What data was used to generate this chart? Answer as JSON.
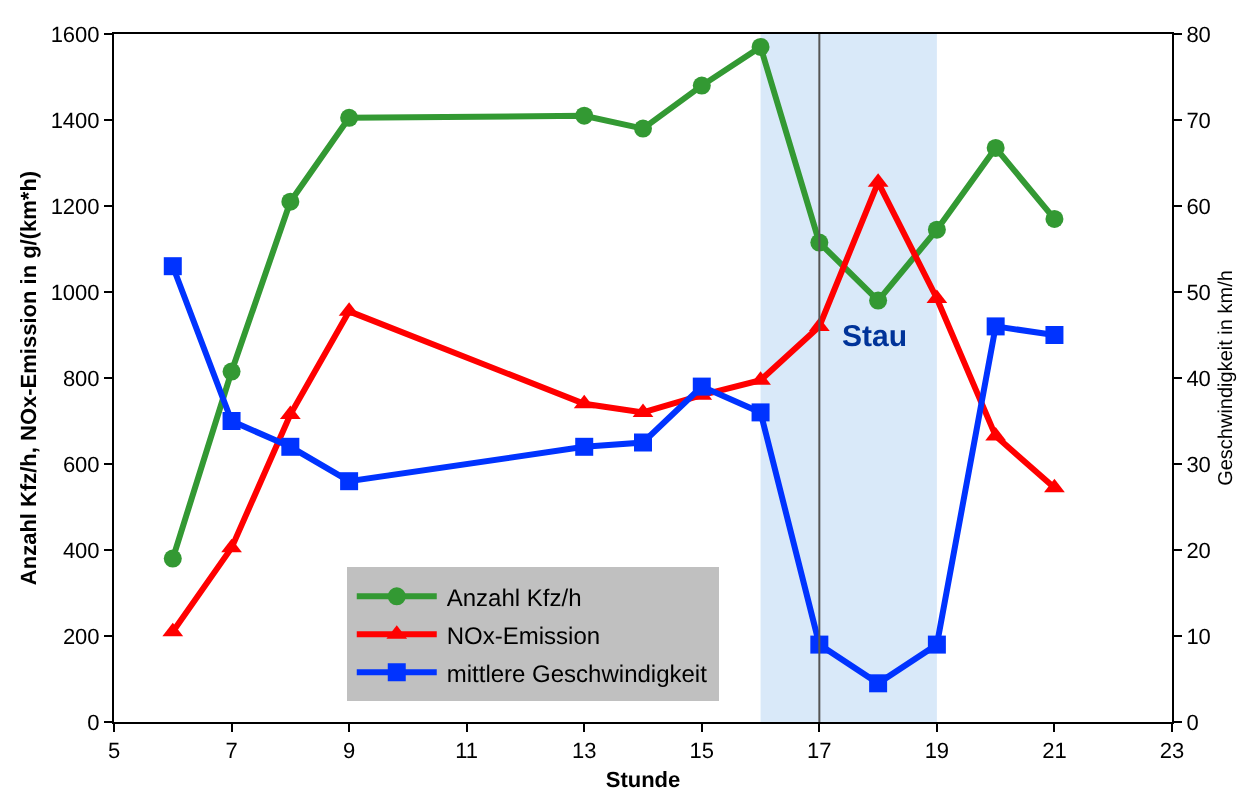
{
  "chart_data": {
    "type": "line",
    "xlabel": "Stunde",
    "ylabel": "Anzahl Kfz/h, NOx-Emission in g/(km*h)",
    "y2label": "Geschwindigkeit in km/h",
    "x": [
      6,
      7,
      8,
      9,
      13,
      14,
      15,
      16,
      17,
      18,
      19,
      20,
      21
    ],
    "series": [
      {
        "name": "Anzahl Kfz/h",
        "color": "#339933",
        "marker": "circle",
        "values": [
          380,
          815,
          1210,
          1405,
          1410,
          1380,
          1480,
          1570,
          1115,
          980,
          1145,
          1335,
          1170
        ]
      },
      {
        "name": "NOx-Emission",
        "color": "#ff0000",
        "marker": "triangle",
        "values": [
          210,
          405,
          715,
          955,
          740,
          720,
          760,
          795,
          920,
          1255,
          985,
          665,
          545
        ]
      },
      {
        "name": "mittlere Geschwindigkeit",
        "color": "#0033ff",
        "marker": "square",
        "axis": "y2",
        "values": [
          53,
          35,
          32,
          28,
          32,
          32.5,
          39,
          36,
          9,
          4.5,
          9,
          46,
          45
        ]
      }
    ],
    "xlim": [
      5,
      23
    ],
    "xticks": [
      5,
      7,
      9,
      11,
      13,
      15,
      17,
      19,
      21,
      23
    ],
    "ylim": [
      0,
      1600
    ],
    "yticks": [
      0,
      200,
      400,
      600,
      800,
      1000,
      1200,
      1400,
      1600
    ],
    "y2lim": [
      0,
      80
    ],
    "y2ticks": [
      0,
      10,
      20,
      30,
      40,
      50,
      60,
      70,
      80
    ],
    "bands": [
      {
        "axis": "x",
        "from": 16,
        "to": 19,
        "label": "Stau",
        "color": "#cfe3f7"
      }
    ],
    "ref_lines": [
      {
        "axis": "x",
        "value": 17,
        "label": null,
        "color": "#555555"
      }
    ],
    "legend": "bottom",
    "grid": false,
    "line_style": "solid"
  }
}
